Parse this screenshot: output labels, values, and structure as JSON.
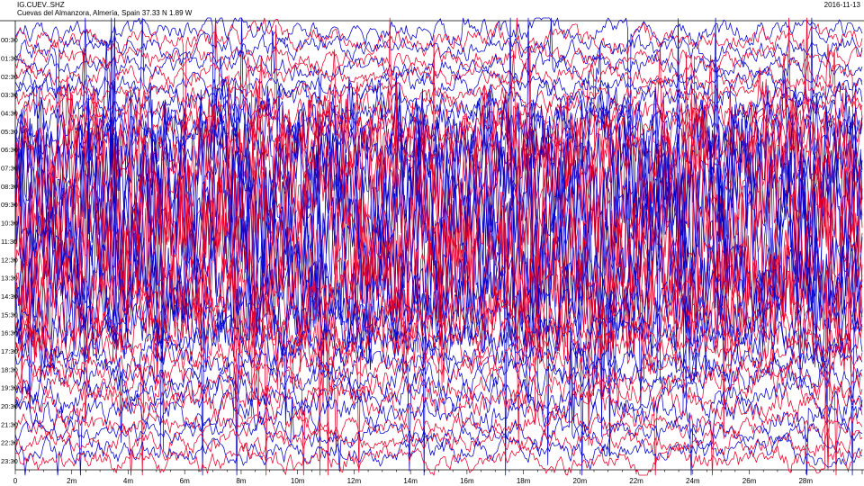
{
  "header": {
    "station_code": "IG.CUEV..SHZ",
    "station_place": "Cuevas del Almanzora, Almería, Spain  37.33 N 1.89 W",
    "date": "2016-11-13"
  },
  "colors": {
    "trace_a": "#e8002a",
    "trace_b": "#0000cc",
    "axis": "#000000",
    "background": "#ffffff"
  },
  "chart_data": {
    "type": "line",
    "title": "IG.CUEV..SHZ",
    "subtitle": "Cuevas del Almanzora, Almería, Spain  37.33 N 1.89 W",
    "date": "2016-11-13",
    "xlabel": "",
    "ylabel": "",
    "x_unit": "minutes",
    "xlim": [
      0,
      30
    ],
    "x_tick_labels": [
      "0",
      "2m",
      "4m",
      "6m",
      "8m",
      "10m",
      "12m",
      "14m",
      "16m",
      "18m",
      "20m",
      "22m",
      "24m",
      "26m",
      "28m"
    ],
    "hour_labels": [
      "00:30",
      "01:30",
      "02:30",
      "03:30",
      "04:30",
      "05:30",
      "06:30",
      "07:30",
      "08:30",
      "09:30",
      "10:30",
      "11:30",
      "12:30",
      "13:30",
      "14:30",
      "15:30",
      "16:30",
      "17:30",
      "18:30",
      "19:30",
      "20:30",
      "21:30",
      "22:30",
      "23:30"
    ],
    "rows_per_hour": 2,
    "row_minutes": 30,
    "colors_alternate": [
      "#0000cc",
      "#e8002a"
    ],
    "activity_by_row": [
      0.02,
      0.02,
      0.02,
      0.02,
      0.02,
      0.02,
      0.02,
      0.02,
      0.03,
      0.03,
      0.04,
      0.04,
      0.06,
      0.07,
      0.09,
      0.1,
      0.12,
      0.14,
      0.16,
      0.18,
      0.2,
      0.22,
      0.22,
      0.2,
      0.18,
      0.16,
      0.14,
      0.12,
      0.1,
      0.1,
      0.08,
      0.07,
      0.06,
      0.05,
      0.04,
      0.04,
      0.03,
      0.03,
      0.03,
      0.03,
      0.03,
      0.03,
      0.03,
      0.02,
      0.02,
      0.02,
      0.02,
      0.02
    ],
    "grid": false,
    "legend": "none"
  }
}
